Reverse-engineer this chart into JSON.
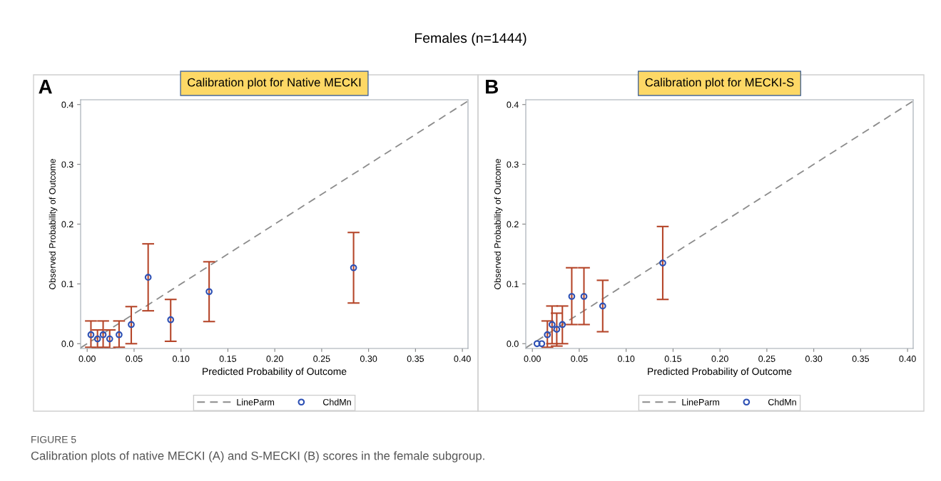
{
  "chart_data": [
    {
      "type": "scatter",
      "title": "Calibration plot for Native MECKI",
      "xlabel": "Predicted Probability of Outcome",
      "ylabel": "Observed Probability of Outcome",
      "annotations": [
        "Females (n=1444)",
        "A",
        "FIGURE 5",
        "Calibration plots of native MECKI (A) and S-MECKI (B) scores in the female subgroup."
      ],
      "xlim": [
        -0.007,
        0.406
      ],
      "ylim": [
        -0.008,
        0.408
      ],
      "xticks": [
        {
          "value": 0,
          "label": "0.00"
        },
        0.05,
        {
          "value": 0.1,
          "label": "0.10"
        },
        0.15,
        {
          "value": 0.2,
          "label": "0.20"
        },
        0.25,
        {
          "value": 0.3,
          "label": "0.30"
        },
        0.35,
        {
          "value": 0.4,
          "label": "0.40"
        }
      ],
      "yticks": [
        {
          "value": 0,
          "label": "0.0"
        },
        0.1,
        0.2,
        0.3,
        0.4
      ],
      "grid": false,
      "legend": "bottom",
      "series": [
        {
          "name": "LineParm",
          "type": "line",
          "color": "#8c8c8c",
          "line_style": "dashed",
          "marker": "none",
          "x": [
            -0.007,
            0.406
          ],
          "values": [
            -0.007,
            0.406
          ]
        },
        {
          "name": "ChdMn",
          "color": "#2d50b4",
          "marker": "circle",
          "x": [
            0.004,
            0.011,
            0.017,
            0.024,
            0.034,
            0.047,
            0.065,
            0.089,
            0.13,
            0.284
          ],
          "values": [
            0.015,
            0.008,
            0.015,
            0.008,
            0.015,
            0.032,
            0.111,
            0.04,
            0.087,
            0.127
          ],
          "errors": [
            [
              -0.006,
              0.038
            ],
            [
              -0.008,
              0.023
            ],
            [
              -0.006,
              0.038
            ],
            [
              -0.008,
              0.023
            ],
            [
              -0.006,
              0.038
            ],
            [
              0.0,
              0.062
            ],
            [
              0.055,
              0.167
            ],
            [
              0.004,
              0.074
            ],
            [
              0.037,
              0.137
            ],
            [
              0.068,
              0.186
            ]
          ]
        }
      ]
    },
    {
      "type": "scatter",
      "title": "Calibration plot for MECKI-S",
      "xlabel": "Predicted Probability of Outcome",
      "ylabel": "Observed Probability of Outcome",
      "annotations": [
        "B"
      ],
      "xlim": [
        -0.007,
        0.406
      ],
      "ylim": [
        -0.008,
        0.408
      ],
      "xticks": [
        {
          "value": 0,
          "label": "0.00"
        },
        0.05,
        {
          "value": 0.1,
          "label": "0.10"
        },
        0.15,
        {
          "value": 0.2,
          "label": "0.20"
        },
        0.25,
        {
          "value": 0.3,
          "label": "0.30"
        },
        0.35,
        {
          "value": 0.4,
          "label": "0.40"
        }
      ],
      "yticks": [
        {
          "value": 0,
          "label": "0.0"
        },
        0.1,
        0.2,
        0.3,
        0.4
      ],
      "grid": false,
      "legend": "bottom",
      "series": [
        {
          "name": "LineParm",
          "type": "line",
          "color": "#8c8c8c",
          "line_style": "dashed",
          "marker": "none",
          "x": [
            -0.007,
            0.406
          ],
          "values": [
            -0.007,
            0.406
          ]
        },
        {
          "name": "ChdMn",
          "color": "#2d50b4",
          "marker": "circle",
          "x": [
            0.005,
            0.01,
            0.016,
            0.021,
            0.026,
            0.032,
            0.042,
            0.055,
            0.075,
            0.139
          ],
          "values": [
            0.0,
            0.0,
            0.015,
            0.032,
            0.024,
            0.032,
            0.079,
            0.079,
            0.063,
            0.135
          ],
          "errors": [
            null,
            null,
            [
              -0.006,
              0.038
            ],
            [
              0.0,
              0.063
            ],
            [
              -0.004,
              0.051
            ],
            [
              0.0,
              0.063
            ],
            [
              0.032,
              0.127
            ],
            [
              0.032,
              0.127
            ],
            [
              0.02,
              0.106
            ],
            [
              0.074,
              0.196
            ]
          ]
        }
      ]
    }
  ]
}
